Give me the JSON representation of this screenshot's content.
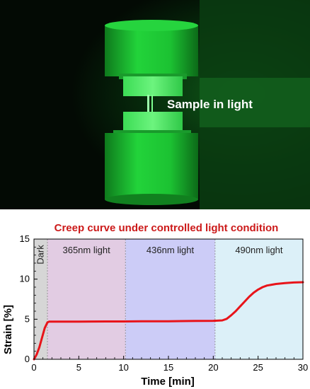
{
  "photo": {
    "label": "Sample in light",
    "colors": {
      "background": "#050c06",
      "glow": "#18b02c",
      "grip": "#1ec833",
      "highlight": "#7dff8f"
    }
  },
  "chart_data": {
    "type": "line",
    "title": "Creep curve under controlled light condition",
    "xlabel": "Time [min]",
    "ylabel": "Strain [%]",
    "xlim": [
      0,
      30
    ],
    "ylim": [
      0,
      15
    ],
    "xticks": [
      0,
      5,
      10,
      15,
      20,
      25,
      30
    ],
    "yticks": [
      0,
      5,
      10,
      15
    ],
    "grid": false,
    "regions": [
      {
        "label": "Dark",
        "x_start": 0,
        "x_end": 1.5,
        "color": "#d6d6d6",
        "vertical": true
      },
      {
        "label": "365nm light",
        "x_start": 1.5,
        "x_end": 10.2,
        "color": "#e2cce3",
        "vertical": false
      },
      {
        "label": "436nm light",
        "x_start": 10.2,
        "x_end": 20.2,
        "color": "#ccccf7",
        "vertical": false
      },
      {
        "label": "490nm light",
        "x_start": 20.2,
        "x_end": 30,
        "color": "#dcf0f8",
        "vertical": false
      }
    ],
    "series": [
      {
        "color": "#e8141a",
        "x": [
          0,
          0.3,
          0.6,
          0.9,
          1.2,
          1.5,
          1.7,
          2,
          3,
          5,
          8,
          10,
          12,
          15,
          18,
          20,
          21,
          21.5,
          22,
          22.5,
          23,
          23.5,
          24,
          24.5,
          25,
          25.5,
          26,
          27,
          28,
          29,
          30
        ],
        "y": [
          0,
          0.6,
          1.5,
          2.7,
          3.9,
          4.6,
          4.7,
          4.7,
          4.7,
          4.7,
          4.72,
          4.72,
          4.74,
          4.75,
          4.78,
          4.8,
          4.85,
          5.05,
          5.5,
          6.0,
          6.6,
          7.2,
          7.8,
          8.3,
          8.7,
          9.0,
          9.2,
          9.4,
          9.5,
          9.58,
          9.62
        ]
      }
    ],
    "title_color": "#cc1a1a"
  }
}
